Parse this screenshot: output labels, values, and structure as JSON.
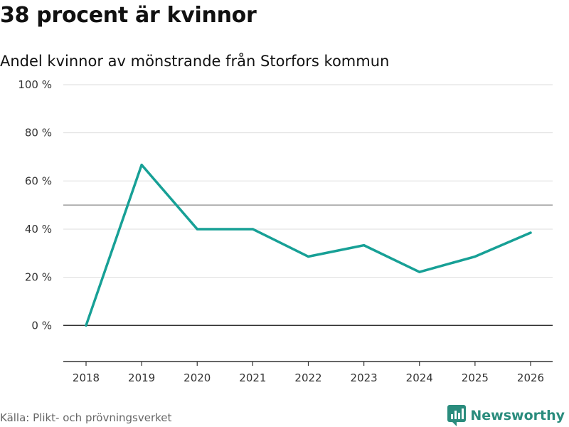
{
  "title": "38 procent är kvinnor",
  "subtitle": "Andel kvinnor av mönstrande från Storfors kommun",
  "source": "Källa: Plikt- och prövningsverket",
  "brand": "Newsworthy",
  "colors": {
    "line": "#17a096",
    "grid": "#dddddd",
    "reference": "#888888",
    "zero": "#333333",
    "brand": "#2a8c7d"
  },
  "chart_data": {
    "type": "line",
    "title": "38 procent är kvinnor",
    "subtitle": "Andel kvinnor av mönstrande från Storfors kommun",
    "xlabel": "",
    "ylabel": "",
    "x": [
      "2018",
      "2019",
      "2020",
      "2021",
      "2022",
      "2023",
      "2024",
      "2025",
      "2026"
    ],
    "series": [
      {
        "name": "Andel kvinnor",
        "values": [
          0,
          66.7,
          40,
          40,
          28.6,
          33.3,
          22.2,
          28.6,
          38.5
        ]
      }
    ],
    "ylim": [
      -15,
      100
    ],
    "yticks": [
      0,
      20,
      40,
      60,
      80,
      100
    ],
    "ytick_labels": [
      "0 %",
      "20 %",
      "40 %",
      "60 %",
      "80 %",
      "100 %"
    ],
    "reference_line": 50,
    "grid": true
  }
}
